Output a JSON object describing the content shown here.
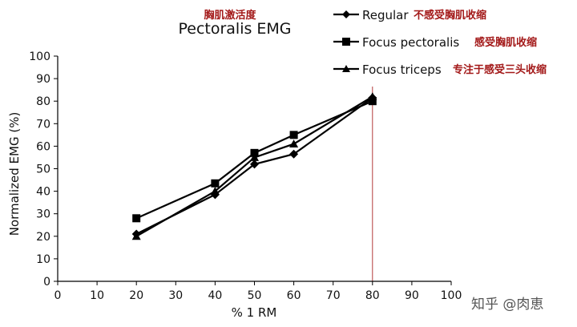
{
  "chart_data": {
    "type": "line",
    "title": "Pectoralis EMG",
    "subtitle": "胸肌激活度",
    "xlabel": "% 1 RM",
    "ylabel": "Normalized EMG (%)",
    "xlim": [
      0,
      100
    ],
    "ylim": [
      0,
      100
    ],
    "xticks": [
      0,
      10,
      20,
      30,
      40,
      50,
      60,
      70,
      80,
      90,
      100
    ],
    "yticks": [
      0,
      10,
      20,
      30,
      40,
      50,
      60,
      70,
      80,
      90,
      100
    ],
    "grid": false,
    "legend_position": "top-right",
    "reference_line_x": 80,
    "series": [
      {
        "name": "Regular",
        "note": "不感受胸肌收缩",
        "marker": "diamond",
        "x": [
          20,
          40,
          50,
          60,
          80
        ],
        "y": [
          21,
          38.5,
          52,
          56.5,
          81.5
        ]
      },
      {
        "name": "Focus pectoralis",
        "note": "感受胸肌收缩",
        "marker": "square",
        "x": [
          20,
          40,
          50,
          60,
          80
        ],
        "y": [
          28,
          43.5,
          57,
          65,
          80
        ]
      },
      {
        "name": "Focus triceps",
        "note": "专注于感受三头收缩",
        "marker": "triangle",
        "x": [
          20,
          40,
          50,
          60,
          80
        ],
        "y": [
          20,
          40,
          55,
          61,
          82
        ]
      }
    ]
  },
  "watermark": "知乎 @肉恵"
}
